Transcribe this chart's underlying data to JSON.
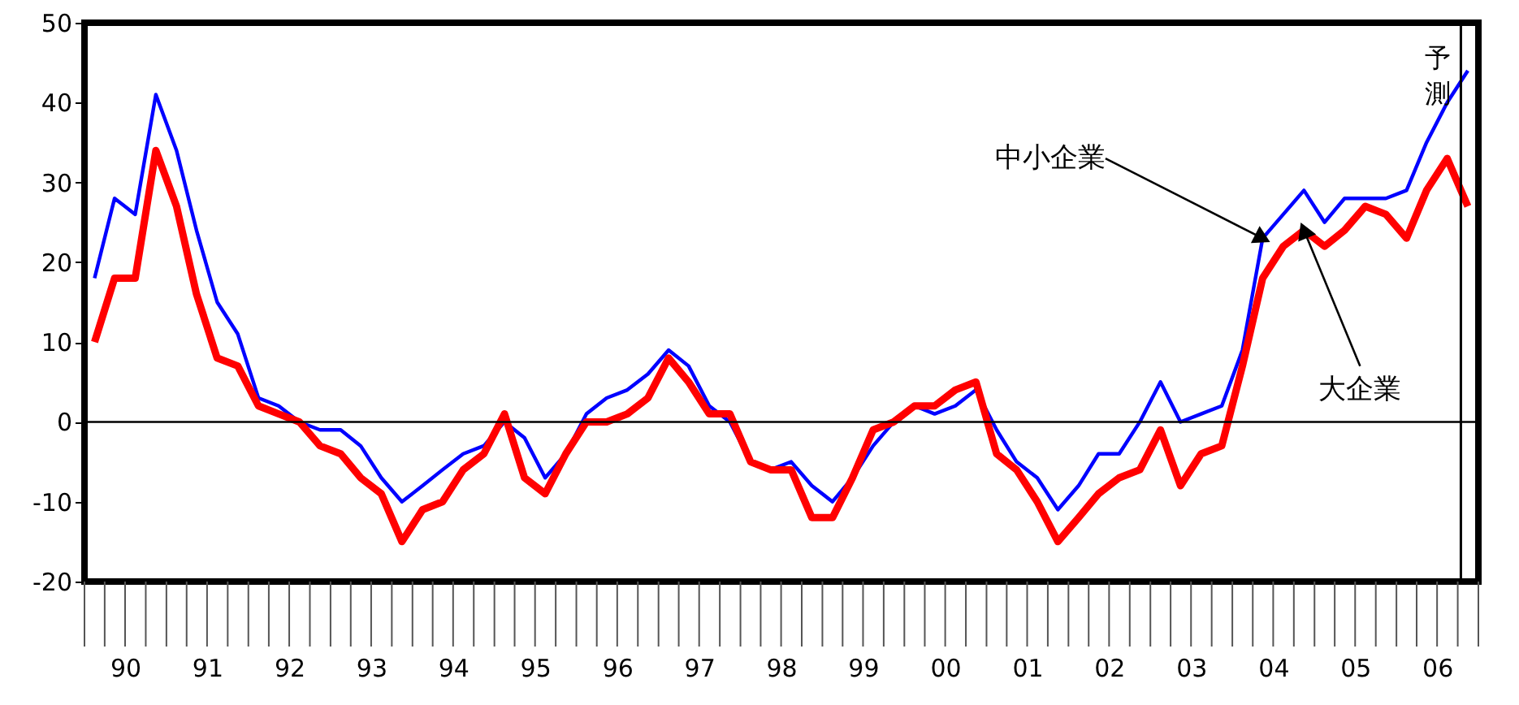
{
  "chart_data": {
    "type": "line",
    "x": [
      "1990-02-15",
      "1990-05-15",
      "1990-08-15",
      "1990-11-15",
      "1991-02-15",
      "1991-05-15",
      "1991-08-15",
      "1991-11-15",
      "1992-02-15",
      "1992-05-15",
      "1992-08-15",
      "1992-11-15",
      "1993-02-15",
      "1993-05-15",
      "1993-08-15",
      "1993-11-15",
      "1994-02-15",
      "1994-05-15",
      "1994-08-15",
      "1994-11-15",
      "1995-02-15",
      "1995-05-15",
      "1995-08-15",
      "1995-11-15",
      "1996-02-15",
      "1996-05-15",
      "1996-08-15",
      "1996-11-15",
      "1997-02-15",
      "1997-05-15",
      "1997-08-15",
      "1997-11-15",
      "1998-02-15",
      "1998-05-15",
      "1998-08-15",
      "1998-11-15",
      "1999-02-15",
      "1999-05-15",
      "1999-08-15",
      "1999-11-15",
      "2000-02-15",
      "2000-05-15",
      "2000-08-15",
      "2000-11-15",
      "2001-02-15",
      "2001-05-15",
      "2001-08-15",
      "2001-11-15",
      "2002-02-15",
      "2002-05-15",
      "2002-08-15",
      "2002-11-15",
      "2003-02-15",
      "2003-05-15",
      "2003-08-15",
      "2003-11-15",
      "2004-02-15",
      "2004-05-15",
      "2004-08-15",
      "2004-11-15",
      "2005-02-15",
      "2005-05-15",
      "2005-08-15",
      "2005-11-15",
      "2006-02-15",
      "2006-05-15",
      "2006-08-15",
      "2006-11-15"
    ],
    "series": [
      {
        "name": "中小企業",
        "color": "#0000ff",
        "values": [
          18,
          28,
          26,
          41,
          34,
          24,
          15,
          11,
          3,
          2,
          0,
          -1,
          -1,
          -3,
          -7,
          -10,
          -8,
          -6,
          -4,
          -3,
          0,
          -2,
          -7,
          -4,
          1,
          3,
          4,
          6,
          9,
          7,
          2,
          0,
          -5,
          -6,
          -5,
          -8,
          -10,
          -7,
          -3,
          0,
          2,
          1,
          2,
          4,
          -1,
          -5,
          -7,
          -11,
          -8,
          -4,
          -4,
          0,
          5,
          0,
          1,
          2,
          9,
          23,
          26,
          29,
          25,
          28,
          28,
          28,
          29,
          35,
          40,
          44
        ]
      },
      {
        "name": "大企業",
        "color": "#ff0000",
        "values": [
          10,
          18,
          18,
          34,
          27,
          16,
          8,
          7,
          2,
          1,
          0,
          -3,
          -4,
          -7,
          -9,
          -15,
          -11,
          -10,
          -6,
          -4,
          1,
          -7,
          -9,
          -4,
          0,
          0,
          1,
          3,
          8,
          5,
          1,
          1,
          -5,
          -6,
          -6,
          -12,
          -12,
          -7,
          -1,
          0,
          2,
          2,
          4,
          5,
          -4,
          -6,
          -10,
          -15,
          -12,
          -9,
          -7,
          -6,
          -1,
          -8,
          -4,
          -3,
          7,
          18,
          22,
          24,
          22,
          24,
          27,
          26,
          23,
          29,
          33,
          27
        ]
      }
    ],
    "xlim": [
      "1990-01-01",
      "2007-01-01"
    ],
    "xticks": [
      {
        "value": "1990-07-01",
        "label": "90"
      },
      {
        "value": "1991-07-01",
        "label": "91"
      },
      {
        "value": "1992-07-01",
        "label": "92"
      },
      {
        "value": "1993-07-01",
        "label": "93"
      },
      {
        "value": "1994-07-01",
        "label": "94"
      },
      {
        "value": "1995-07-01",
        "label": "95"
      },
      {
        "value": "1996-07-01",
        "label": "96"
      },
      {
        "value": "1997-07-01",
        "label": "97"
      },
      {
        "value": "1998-07-01",
        "label": "98"
      },
      {
        "value": "1999-07-01",
        "label": "99"
      },
      {
        "value": "2000-07-01",
        "label": "00"
      },
      {
        "value": "2001-07-01",
        "label": "01"
      },
      {
        "value": "2002-07-01",
        "label": "02"
      },
      {
        "value": "2003-07-01",
        "label": "03"
      },
      {
        "value": "2004-07-01",
        "label": "04"
      },
      {
        "value": "2005-07-01",
        "label": "05"
      },
      {
        "value": "2006-07-01",
        "label": "06"
      }
    ],
    "ylim": [
      -20,
      50
    ],
    "yticks": [
      -20,
      -10,
      0,
      10,
      20,
      30,
      40,
      50
    ],
    "grid": false,
    "ref_lines": [
      {
        "axis": "y",
        "value": 0,
        "color": "#000000"
      },
      {
        "axis": "x",
        "value": "2006-10-15",
        "label": "予測",
        "color": "#000000"
      }
    ]
  }
}
